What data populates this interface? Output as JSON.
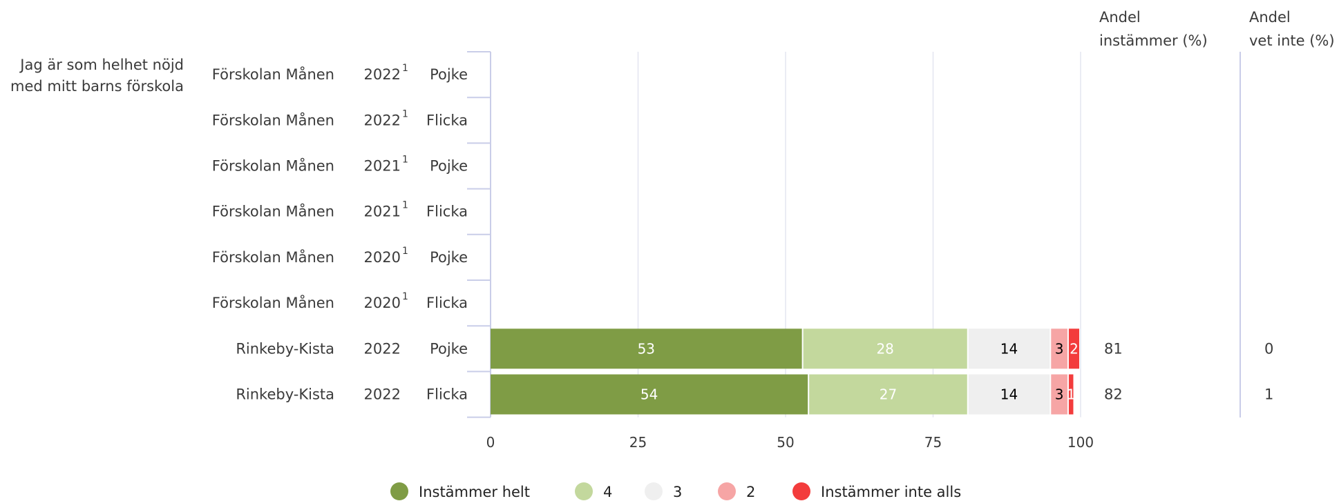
{
  "question": {
    "line1": "Jag är som helhet nöjd",
    "line2": "med mitt barns förskola"
  },
  "headers": {
    "agree_line1": "Andel",
    "agree_line2": "instämmer (%)",
    "dontknow_line1": "Andel",
    "dontknow_line2": "vet inte (%)"
  },
  "colors": {
    "seg1": "#7f9c45",
    "seg2": "#c3d89d",
    "seg3": "#efefef",
    "seg4": "#f6a5a5",
    "seg5": "#f33c3c",
    "axis": "#c9cde8",
    "grid": "#e3e5f0"
  },
  "rows": [
    {
      "school": "Förskolan Månen",
      "year": "2022",
      "footnote": "1",
      "gender": "Pojke"
    },
    {
      "school": "Förskolan Månen",
      "year": "2022",
      "footnote": "1",
      "gender": "Flicka"
    },
    {
      "school": "Förskolan Månen",
      "year": "2021",
      "footnote": "1",
      "gender": "Pojke"
    },
    {
      "school": "Förskolan Månen",
      "year": "2021",
      "footnote": "1",
      "gender": "Flicka"
    },
    {
      "school": "Förskolan Månen",
      "year": "2020",
      "footnote": "1",
      "gender": "Pojke"
    },
    {
      "school": "Förskolan Månen",
      "year": "2020",
      "footnote": "1",
      "gender": "Flicka"
    },
    {
      "school": "Rinkeby-Kista",
      "year": "2022",
      "footnote": "",
      "gender": "Pojke"
    },
    {
      "school": "Rinkeby-Kista",
      "year": "2022",
      "footnote": "",
      "gender": "Flicka"
    }
  ],
  "chart_data": {
    "type": "bar",
    "orientation": "horizontal",
    "stacked": true,
    "xlim": [
      0,
      100
    ],
    "xticks": [
      0,
      25,
      50,
      75,
      100
    ],
    "grid": true,
    "legend_position": "bottom",
    "categories": [
      "Förskolan Månen 2022 Pojke",
      "Förskolan Månen 2022 Flicka",
      "Förskolan Månen 2021 Pojke",
      "Förskolan Månen 2021 Flicka",
      "Förskolan Månen 2020 Pojke",
      "Förskolan Månen 2020 Flicka",
      "Rinkeby-Kista 2022 Pojke",
      "Rinkeby-Kista 2022 Flicka"
    ],
    "series": [
      {
        "name": "Instämmer helt",
        "values": [
          null,
          null,
          null,
          null,
          null,
          null,
          53,
          54
        ]
      },
      {
        "name": "4",
        "values": [
          null,
          null,
          null,
          null,
          null,
          null,
          28,
          27
        ]
      },
      {
        "name": "3",
        "values": [
          null,
          null,
          null,
          null,
          null,
          null,
          14,
          14
        ]
      },
      {
        "name": "2",
        "values": [
          null,
          null,
          null,
          null,
          null,
          null,
          3,
          3
        ]
      },
      {
        "name": "Instämmer inte alls",
        "values": [
          null,
          null,
          null,
          null,
          null,
          null,
          2,
          1
        ]
      }
    ],
    "andel_instammer": [
      null,
      null,
      null,
      null,
      null,
      null,
      "81",
      "82"
    ],
    "andel_vet_inte": [
      null,
      null,
      null,
      null,
      null,
      null,
      "0",
      "1"
    ]
  }
}
